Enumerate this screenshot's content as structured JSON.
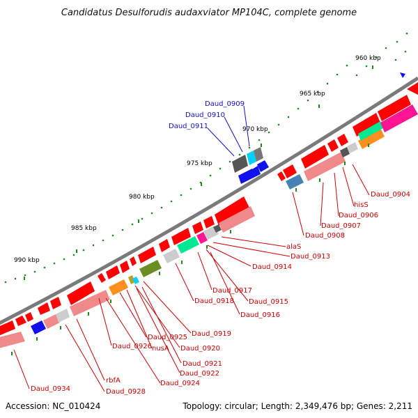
{
  "title": "Candidatus Desulforudis audaxviator MP104C, complete genome",
  "footer": {
    "accession": "Accession: NC_010424",
    "summary": "Topology: circular; Length: 2,349,476 bp; Genes: 2,211"
  },
  "kbp_ticks": [
    "960 kbp",
    "965 kbp",
    "970 kbp",
    "975 kbp",
    "980 kbp",
    "985 kbp",
    "990 kbp"
  ],
  "colors": {
    "backbone": "#7a7a7a",
    "forward_gene": "#ff0000",
    "reverse_gene": "#f08a8a",
    "upper_label": "#1010cc",
    "lower_label": "#cc0000",
    "tick": "#1a8a1a"
  },
  "upper_labels": [
    "Daud_0909",
    "Daud_0910",
    "Daud_0911"
  ],
  "lower_labels": [
    "Daud_0904",
    "hisS",
    "Daud_0906",
    "Daud_0907",
    "Daud_0908",
    "alaS",
    "Daud_0913",
    "Daud_0914",
    "Daud_0917",
    "Daud_0915",
    "Daud_0918",
    "Daud_0916",
    "Daud_0919",
    "Daud_0925",
    "Daud_0920",
    "nusA",
    "Daud_0926",
    "Daud_0921",
    "Daud_0922",
    "Daud_0924",
    "rbfA",
    "Daud_0928",
    "Daud_0934"
  ]
}
